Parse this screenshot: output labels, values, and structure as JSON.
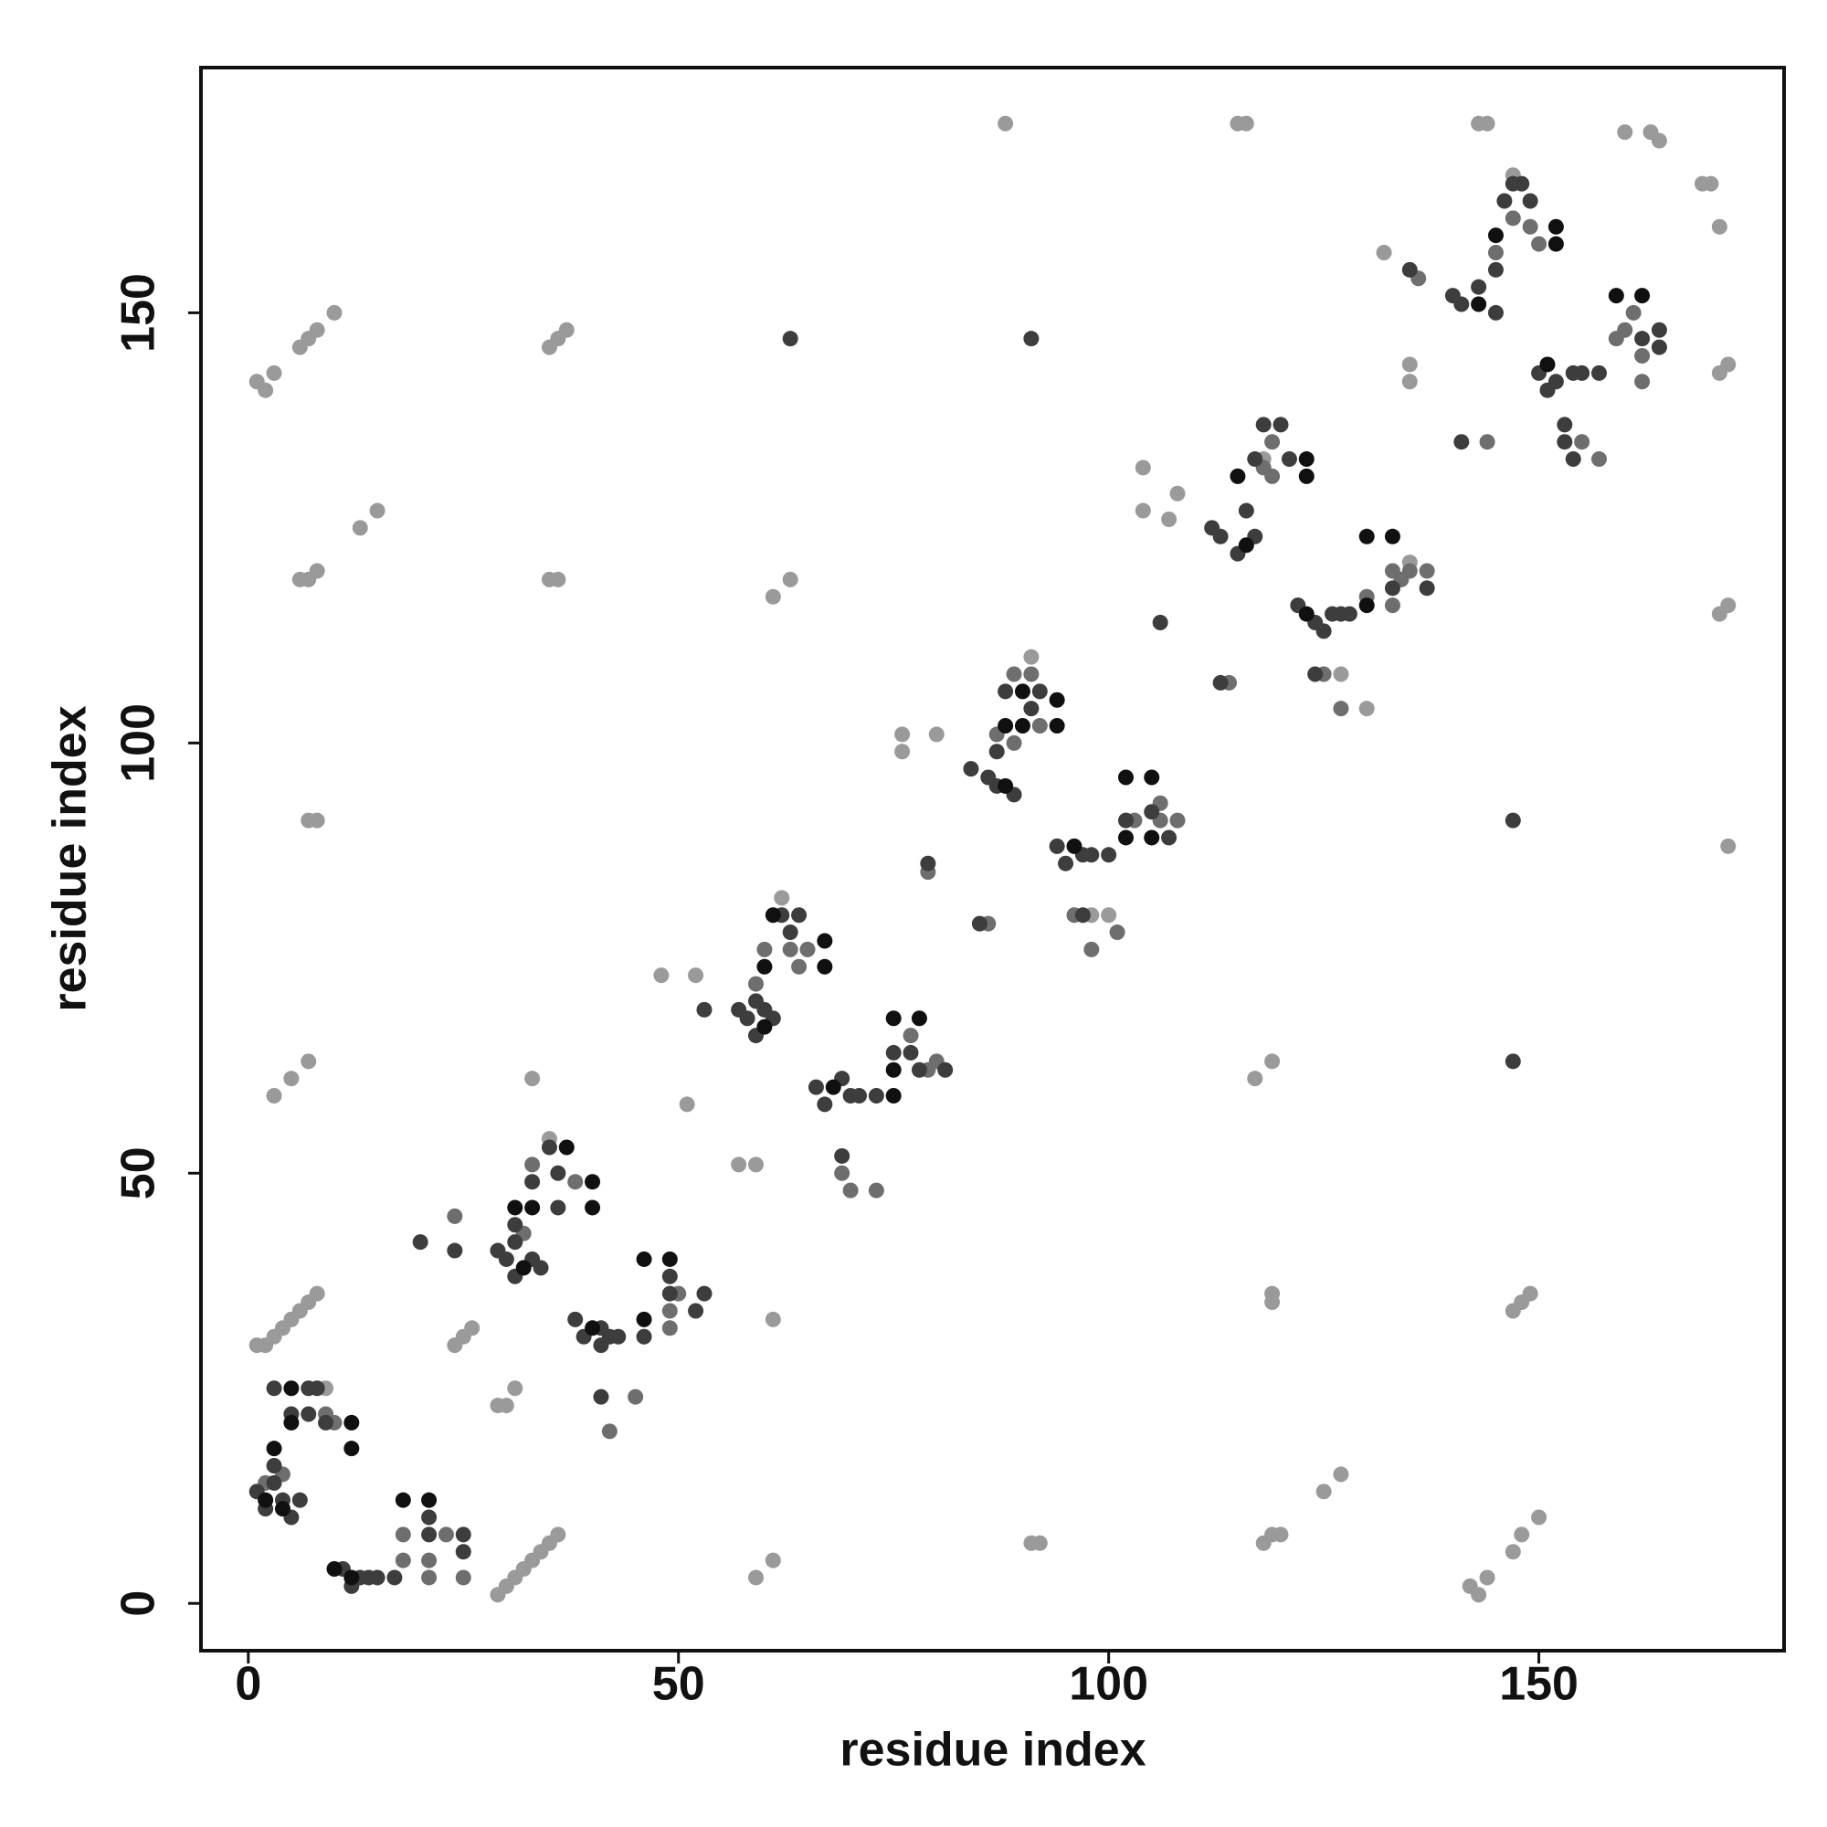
{
  "chart_data": {
    "type": "scatter",
    "xlabel": "residue index",
    "ylabel": "residue index",
    "xlim": [
      -5.5,
      178.5
    ],
    "ylim": [
      -5.5,
      178.5
    ],
    "xticks": [
      0,
      50,
      100,
      150
    ],
    "yticks": [
      0,
      50,
      100,
      150
    ],
    "series": [
      {
        "color": "#9a9a9a",
        "x": [
          88,
          115,
          116,
          143,
          144,
          160,
          163,
          164,
          169,
          170,
          171,
          1,
          2,
          3,
          6,
          7,
          8,
          10,
          13,
          15,
          35,
          36,
          37,
          6,
          7,
          8,
          35,
          36,
          61,
          63,
          7,
          8,
          3,
          5,
          7,
          33,
          1,
          2,
          3,
          4,
          5,
          6,
          7,
          8,
          24,
          25,
          26,
          29,
          30,
          31,
          29,
          30,
          31,
          32,
          33,
          34,
          35,
          36,
          59,
          61,
          91,
          92,
          118,
          119,
          120,
          142,
          143,
          144,
          147,
          148,
          150,
          125,
          127,
          119,
          119,
          147,
          148,
          149,
          61,
          117,
          119,
          57,
          59,
          51,
          48,
          52,
          76,
          80,
          76,
          104,
          104,
          108,
          107,
          132,
          135,
          135,
          171,
          172,
          171,
          172,
          172,
          62,
          91,
          118,
          147,
          135,
          127,
          130,
          100,
          98,
          35,
          9
        ],
        "y": [
          172,
          172,
          172,
          172,
          172,
          171,
          171,
          170,
          165,
          165,
          160,
          142,
          141,
          143,
          146,
          147,
          148,
          150,
          125,
          127,
          146,
          147,
          148,
          119,
          119,
          120,
          119,
          119,
          117,
          119,
          91,
          91,
          59,
          61,
          63,
          61,
          30,
          30,
          31,
          32,
          33,
          34,
          35,
          36,
          30,
          31,
          32,
          23,
          23,
          25,
          1,
          2,
          3,
          4,
          5,
          6,
          7,
          8,
          3,
          5,
          7,
          7,
          7,
          8,
          8,
          2,
          1,
          3,
          6,
          8,
          10,
          13,
          15,
          35,
          36,
          34,
          35,
          36,
          33,
          61,
          63,
          51,
          51,
          58,
          73,
          73,
          101,
          101,
          99,
          132,
          127,
          129,
          126,
          157,
          142,
          144,
          143,
          144,
          115,
          116,
          88,
          82,
          110,
          133,
          166,
          121,
          108,
          104,
          80,
          80,
          54,
          25
        ]
      },
      {
        "color": "#6e6e6e",
        "x": [
          2,
          4,
          9,
          10,
          18,
          18,
          21,
          21,
          23,
          25,
          24,
          32,
          33,
          38,
          42,
          45,
          49,
          49,
          50,
          59,
          60,
          63,
          64,
          65,
          69,
          70,
          73,
          77,
          79,
          80,
          79,
          86,
          87,
          89,
          91,
          89,
          92,
          96,
          98,
          101,
          103,
          106,
          108,
          106,
          118,
          119,
          119,
          114,
          125,
          127,
          130,
          133,
          134,
          135,
          137,
          133,
          145,
          147,
          149,
          150,
          144,
          136,
          155,
          157,
          159,
          160,
          161,
          162,
          162
        ],
        "y": [
          14,
          15,
          22,
          21,
          5,
          8,
          5,
          3,
          8,
          3,
          45,
          43,
          51,
          49,
          20,
          24,
          34,
          32,
          36,
          72,
          76,
          76,
          74,
          76,
          50,
          48,
          48,
          66,
          62,
          63,
          85,
          79,
          101,
          108,
          108,
          100,
          102,
          80,
          76,
          78,
          91,
          93,
          91,
          91,
          132,
          131,
          135,
          107,
          108,
          104,
          117,
          120,
          119,
          120,
          120,
          116,
          157,
          161,
          160,
          158,
          135,
          154,
          135,
          133,
          147,
          148,
          150,
          145,
          142
        ]
      },
      {
        "color": "#3d3d3d",
        "x": [
          1,
          2,
          3,
          4,
          5,
          6,
          3,
          5,
          7,
          7,
          8,
          9,
          3,
          11,
          12,
          13,
          14,
          15,
          17,
          21,
          21,
          25,
          25,
          29,
          30,
          31,
          33,
          34,
          31,
          31,
          33,
          36,
          35,
          36,
          38,
          39,
          41,
          41,
          42,
          43,
          46,
          41,
          49,
          49,
          52,
          53,
          20,
          24,
          57,
          58,
          59,
          60,
          61,
          59,
          62,
          63,
          64,
          53,
          66,
          67,
          69,
          70,
          71,
          73,
          69,
          75,
          77,
          78,
          81,
          84,
          86,
          87,
          89,
          87,
          88,
          91,
          92,
          79,
          85,
          94,
          95,
          97,
          98,
          100,
          102,
          105,
          107,
          97,
          112,
          113,
          115,
          117,
          116,
          117,
          118,
          120,
          121,
          113,
          106,
          122,
          124,
          125,
          126,
          127,
          128,
          124,
          137,
          133,
          153,
          154,
          140,
          141,
          143,
          145,
          145,
          146,
          147,
          148,
          149,
          135,
          141,
          150,
          151,
          152,
          154,
          155,
          153,
          157,
          162,
          164,
          164,
          63,
          91,
          147,
          147
        ],
        "y": [
          13,
          11,
          14,
          12,
          10,
          12,
          16,
          22,
          22,
          25,
          25,
          21,
          25,
          4,
          2,
          3,
          3,
          3,
          3,
          10,
          8,
          8,
          6,
          41,
          40,
          38,
          40,
          39,
          42,
          44,
          49,
          50,
          53,
          46,
          33,
          31,
          30,
          32,
          31,
          31,
          31,
          24,
          38,
          36,
          34,
          36,
          42,
          41,
          69,
          68,
          66,
          69,
          68,
          70,
          80,
          78,
          80,
          69,
          60,
          58,
          61,
          59,
          59,
          59,
          52,
          64,
          64,
          62,
          62,
          97,
          96,
          95,
          94,
          99,
          106,
          104,
          106,
          86,
          79,
          88,
          86,
          87,
          87,
          87,
          91,
          92,
          89,
          80,
          125,
          124,
          122,
          124,
          127,
          133,
          137,
          137,
          133,
          107,
          114,
          116,
          114,
          113,
          115,
          115,
          115,
          108,
          118,
          118,
          137,
          133,
          152,
          151,
          153,
          150,
          155,
          163,
          165,
          165,
          163,
          155,
          135,
          143,
          141,
          142,
          143,
          143,
          135,
          143,
          147,
          148,
          146,
          147,
          147,
          91,
          63
        ]
      },
      {
        "color": "#101010",
        "x": [
          3,
          5,
          12,
          12,
          5,
          2,
          4,
          18,
          21,
          12,
          10,
          31,
          33,
          37,
          40,
          40,
          32,
          46,
          49,
          46,
          40,
          60,
          61,
          67,
          67,
          60,
          75,
          75,
          78,
          68,
          75,
          90,
          88,
          90,
          94,
          94,
          88,
          102,
          102,
          105,
          105,
          96,
          115,
          123,
          123,
          116,
          130,
          133,
          130,
          123,
          145,
          152,
          152,
          143,
          159,
          162,
          151
        ],
        "y": [
          18,
          21,
          21,
          18,
          25,
          12,
          11,
          12,
          12,
          3,
          4,
          46,
          46,
          53,
          49,
          46,
          39,
          40,
          40,
          33,
          32,
          74,
          80,
          77,
          74,
          67,
          62,
          68,
          68,
          60,
          59,
          102,
          102,
          106,
          105,
          102,
          95,
          89,
          96,
          96,
          89,
          88,
          131,
          133,
          131,
          123,
          124,
          124,
          116,
          115,
          159,
          160,
          158,
          151,
          152,
          152,
          144
        ]
      }
    ]
  }
}
